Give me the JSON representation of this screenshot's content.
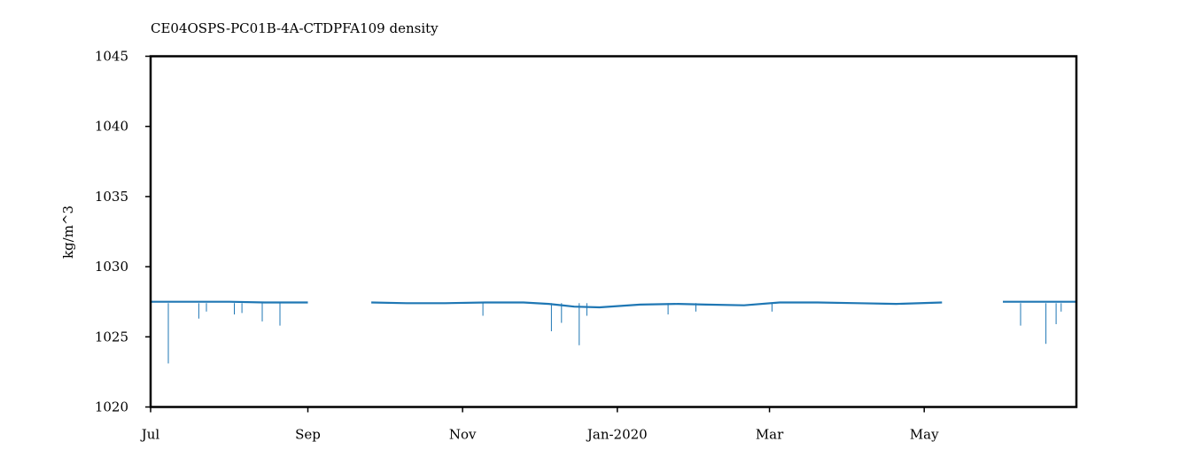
{
  "chart_data": {
    "type": "line",
    "title": "CE04OSPS-PC01B-4A-CTDPFA109 density",
    "xlabel": "",
    "ylabel": "kg/m^3",
    "xlim": [
      "2019-07-01",
      "2020-06-30"
    ],
    "ylim": [
      1020,
      1045
    ],
    "x_ticks": [
      {
        "label": "Jul",
        "date": "2019-07-01"
      },
      {
        "label": "Sep",
        "date": "2019-09-01"
      },
      {
        "label": "Nov",
        "date": "2019-11-01"
      },
      {
        "label": "Jan-2020",
        "date": "2020-01-01"
      },
      {
        "label": "Mar",
        "date": "2020-03-01"
      },
      {
        "label": "May",
        "date": "2020-05-01"
      }
    ],
    "y_ticks": [
      1020,
      1025,
      1030,
      1035,
      1040,
      1045
    ],
    "grid": false,
    "legend": "none",
    "series_color": "#1f77b4",
    "series": [
      {
        "x": [
          "2019-07-01",
          "2019-07-15",
          "2019-08-01",
          "2019-08-15",
          "2019-09-01",
          null,
          "2019-09-26",
          "2019-10-10",
          "2019-10-25",
          "2019-11-10",
          "2019-11-25",
          "2019-12-05",
          "2019-12-15",
          "2019-12-25",
          "2020-01-10",
          "2020-01-25",
          "2020-02-05",
          "2020-02-20",
          "2020-03-05",
          "2020-03-20",
          "2020-04-05",
          "2020-04-20",
          "2020-05-08",
          null,
          "2020-06-01",
          "2020-06-15",
          "2020-06-30"
        ],
        "y": [
          1027.5,
          1027.5,
          1027.5,
          1027.45,
          1027.45,
          null,
          1027.45,
          1027.4,
          1027.4,
          1027.45,
          1027.45,
          1027.35,
          1027.15,
          1027.1,
          1027.3,
          1027.35,
          1027.3,
          1027.25,
          1027.45,
          1027.45,
          1027.4,
          1027.35,
          1027.45,
          null,
          1027.5,
          1027.5,
          1027.5
        ]
      }
    ],
    "dips": [
      {
        "date": "2019-07-08",
        "min": 1023.1
      },
      {
        "date": "2019-07-20",
        "min": 1026.3
      },
      {
        "date": "2019-07-23",
        "min": 1026.8
      },
      {
        "date": "2019-08-03",
        "min": 1026.6
      },
      {
        "date": "2019-08-06",
        "min": 1026.7
      },
      {
        "date": "2019-08-14",
        "min": 1026.1
      },
      {
        "date": "2019-08-21",
        "min": 1025.8
      },
      {
        "date": "2019-11-09",
        "min": 1026.5
      },
      {
        "date": "2019-12-06",
        "min": 1025.4
      },
      {
        "date": "2019-12-10",
        "min": 1026.0
      },
      {
        "date": "2019-12-17",
        "min": 1024.4
      },
      {
        "date": "2019-12-20",
        "min": 1026.5
      },
      {
        "date": "2020-01-21",
        "min": 1026.6
      },
      {
        "date": "2020-02-01",
        "min": 1026.8
      },
      {
        "date": "2020-03-02",
        "min": 1026.8
      },
      {
        "date": "2020-06-08",
        "min": 1025.8
      },
      {
        "date": "2020-06-18",
        "min": 1024.5
      },
      {
        "date": "2020-06-22",
        "min": 1025.9
      },
      {
        "date": "2020-06-24",
        "min": 1026.8
      }
    ]
  }
}
